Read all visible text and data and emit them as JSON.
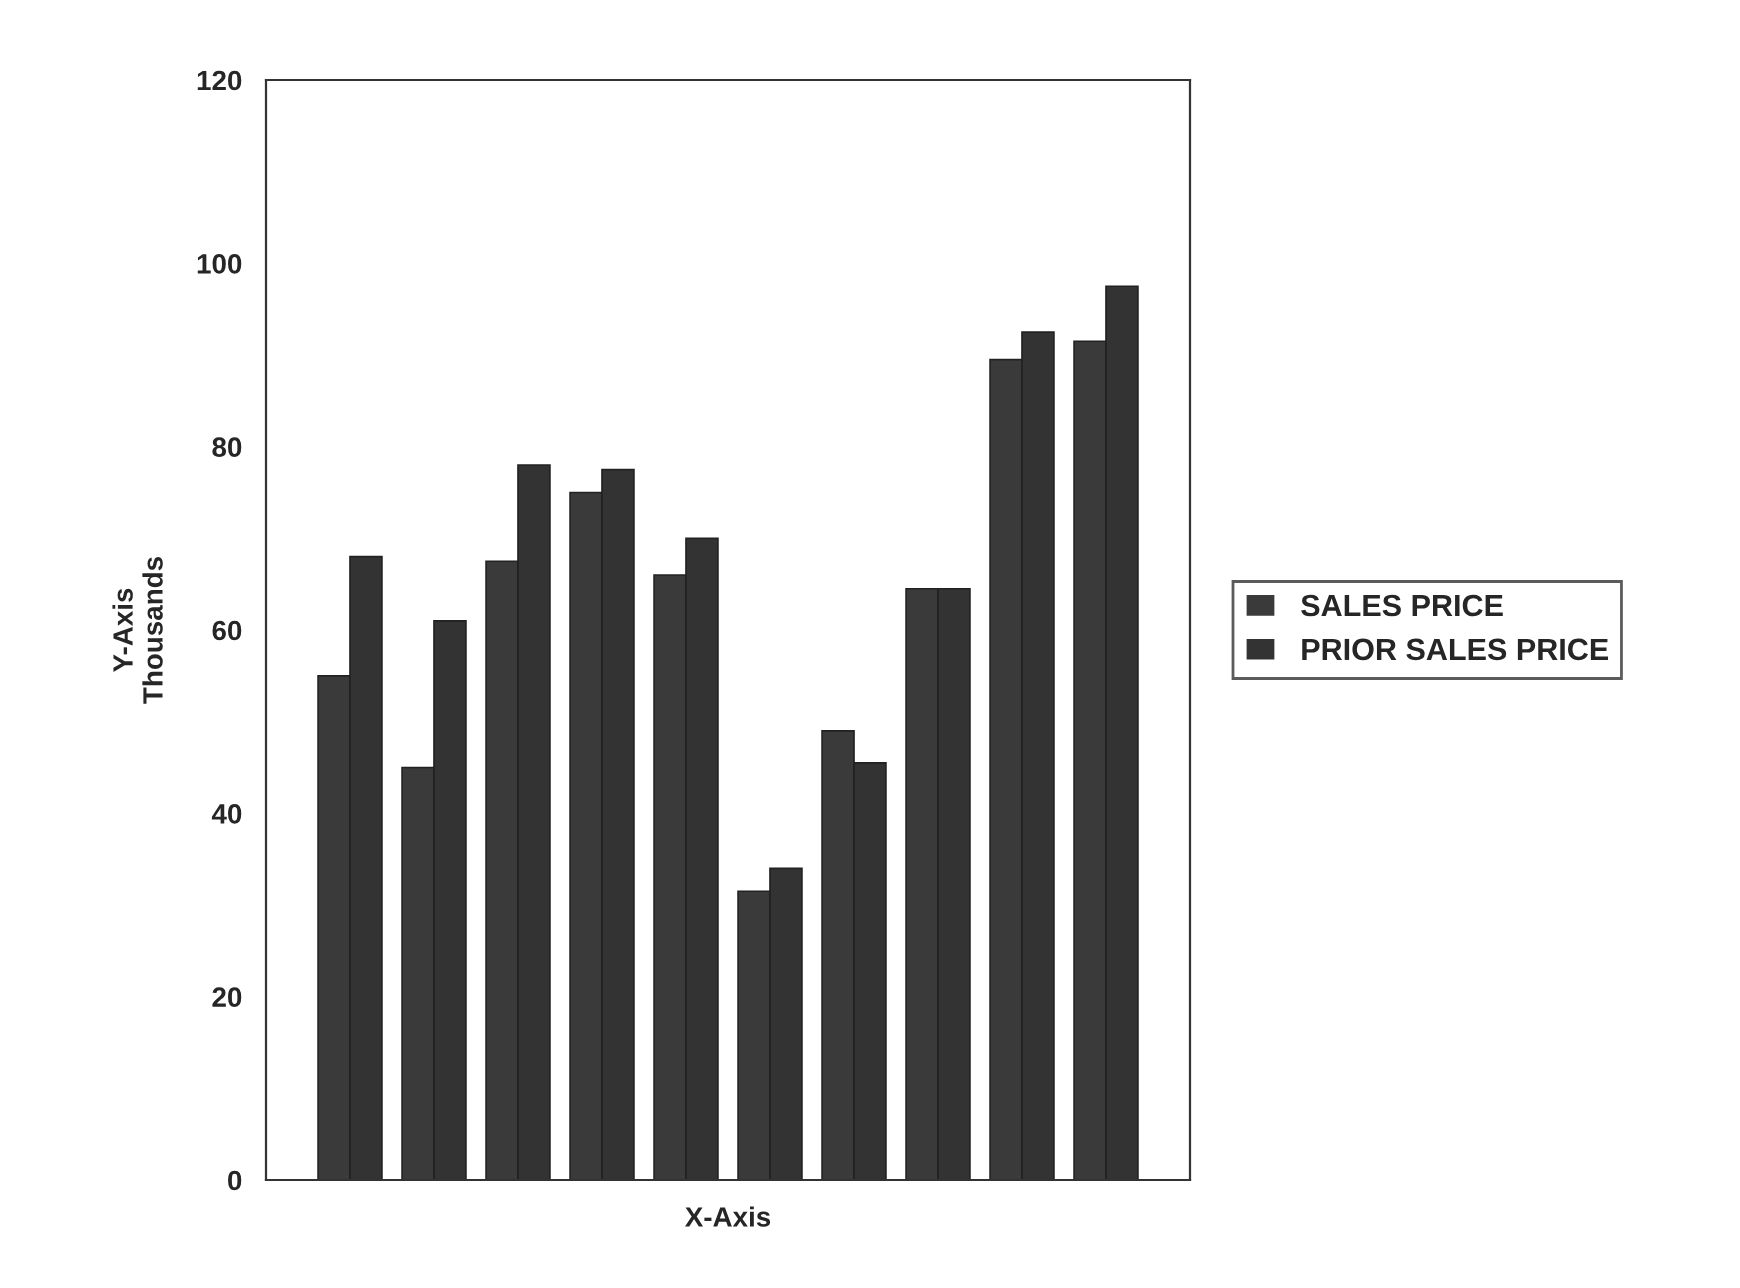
{
  "chart_data": {
    "type": "bar",
    "xlabel": "X-Axis",
    "ylabel": "Y-Axis\nThousands",
    "categories": [
      null,
      null,
      null,
      null,
      null,
      null,
      null,
      null,
      null,
      null
    ],
    "series": [
      {
        "name": "SALES PRICE",
        "color": "#3a3a3a",
        "values": [
          55,
          45,
          67.5,
          75,
          66,
          31.5,
          49,
          64.5,
          89.5,
          91.5
        ]
      },
      {
        "name": "PRIOR SALES PRICE",
        "color": "#333333",
        "values": [
          68,
          61,
          78,
          77.5,
          70,
          34,
          45.5,
          64.5,
          92.5,
          97.5
        ]
      }
    ],
    "ylim": [
      0,
      120
    ],
    "yticks": [
      0,
      20,
      40,
      60,
      80,
      100,
      120
    ],
    "grid": false,
    "legend": "right"
  }
}
